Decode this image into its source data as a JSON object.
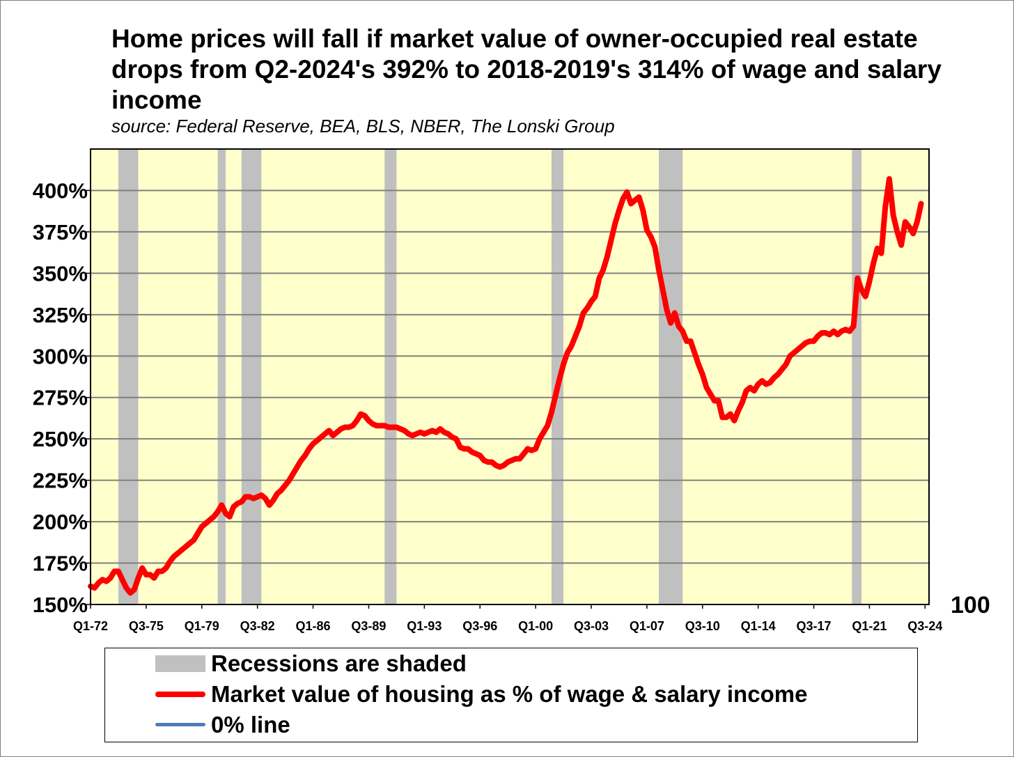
{
  "chart_data": {
    "type": "line",
    "title": "Home prices will fall if market value of owner-occupied real estate drops from Q2-2024's 392% to 2018-2019's 314% of wage and salary income",
    "subtitle": "source: Federal Reserve, BEA, BLS, NBER, The Lonski Group",
    "xlabel": "",
    "ylabel": "",
    "x_range": [
      1972.0,
      2024.75
    ],
    "ylim": [
      150,
      425
    ],
    "y_ticks": [
      150,
      175,
      200,
      225,
      250,
      275,
      300,
      325,
      350,
      375,
      400
    ],
    "y_tick_labels": [
      "150%",
      "175%",
      "200%",
      "225%",
      "250%",
      "275%",
      "300%",
      "325%",
      "350%",
      "375%",
      "400%"
    ],
    "right_axis_label": "100",
    "x_tick_labels": [
      {
        "label": "Q1-72",
        "x": 1972.0
      },
      {
        "label": "Q3-75",
        "x": 1975.5
      },
      {
        "label": "Q1-79",
        "x": 1979.0
      },
      {
        "label": "Q3-82",
        "x": 1982.5
      },
      {
        "label": "Q1-86",
        "x": 1986.0
      },
      {
        "label": "Q3-89",
        "x": 1989.5
      },
      {
        "label": "Q1-93",
        "x": 1993.0
      },
      {
        "label": "Q3-96",
        "x": 1996.5
      },
      {
        "label": "Q1-00",
        "x": 2000.0
      },
      {
        "label": "Q3-03",
        "x": 2003.5
      },
      {
        "label": "Q1-07",
        "x": 2007.0
      },
      {
        "label": "Q3-10",
        "x": 2010.5
      },
      {
        "label": "Q1-14",
        "x": 2014.0
      },
      {
        "label": "Q3-17",
        "x": 2017.5
      },
      {
        "label": "Q1-21",
        "x": 2021.0
      },
      {
        "label": "Q3-24",
        "x": 2024.5
      }
    ],
    "grid": true,
    "plot_background": "#ffffcc",
    "recessions": [
      {
        "start": 1973.75,
        "end": 1975.0
      },
      {
        "start": 1980.0,
        "end": 1980.5
      },
      {
        "start": 1981.5,
        "end": 1982.75
      },
      {
        "start": 1990.5,
        "end": 1991.25
      },
      {
        "start": 2001.0,
        "end": 2001.75
      },
      {
        "start": 2007.75,
        "end": 2009.25
      },
      {
        "start": 2019.9,
        "end": 2020.5
      }
    ],
    "series": [
      {
        "name": "Market value of housing as % of wage & salary income",
        "color": "#ff0000",
        "points": [
          [
            1972.0,
            161
          ],
          [
            1972.25,
            160
          ],
          [
            1972.5,
            163
          ],
          [
            1972.75,
            165
          ],
          [
            1973.0,
            164
          ],
          [
            1973.25,
            166
          ],
          [
            1973.5,
            170
          ],
          [
            1973.75,
            170
          ],
          [
            1974.0,
            165
          ],
          [
            1974.25,
            160
          ],
          [
            1974.5,
            157
          ],
          [
            1974.75,
            159
          ],
          [
            1975.0,
            166
          ],
          [
            1975.25,
            172
          ],
          [
            1975.5,
            168
          ],
          [
            1975.75,
            168
          ],
          [
            1976.0,
            166
          ],
          [
            1976.25,
            170
          ],
          [
            1976.5,
            170
          ],
          [
            1976.75,
            172
          ],
          [
            1977.0,
            176
          ],
          [
            1977.25,
            179
          ],
          [
            1977.5,
            181
          ],
          [
            1977.75,
            183
          ],
          [
            1978.0,
            185
          ],
          [
            1978.25,
            187
          ],
          [
            1978.5,
            189
          ],
          [
            1978.75,
            193
          ],
          [
            1979.0,
            197
          ],
          [
            1979.25,
            199
          ],
          [
            1979.5,
            201
          ],
          [
            1979.75,
            203
          ],
          [
            1980.0,
            206
          ],
          [
            1980.25,
            210
          ],
          [
            1980.5,
            205
          ],
          [
            1980.75,
            203
          ],
          [
            1981.0,
            209
          ],
          [
            1981.25,
            211
          ],
          [
            1981.5,
            212
          ],
          [
            1981.75,
            215
          ],
          [
            1982.0,
            215
          ],
          [
            1982.25,
            214
          ],
          [
            1982.5,
            215
          ],
          [
            1982.75,
            216
          ],
          [
            1983.0,
            214
          ],
          [
            1983.25,
            210
          ],
          [
            1983.5,
            213
          ],
          [
            1983.75,
            217
          ],
          [
            1984.0,
            219
          ],
          [
            1984.25,
            222
          ],
          [
            1984.5,
            225
          ],
          [
            1984.75,
            229
          ],
          [
            1985.0,
            233
          ],
          [
            1985.25,
            237
          ],
          [
            1985.5,
            240
          ],
          [
            1985.75,
            244
          ],
          [
            1986.0,
            247
          ],
          [
            1986.25,
            249
          ],
          [
            1986.5,
            251
          ],
          [
            1986.75,
            253
          ],
          [
            1987.0,
            255
          ],
          [
            1987.25,
            252
          ],
          [
            1987.5,
            254
          ],
          [
            1987.75,
            256
          ],
          [
            1988.0,
            257
          ],
          [
            1988.25,
            257
          ],
          [
            1988.5,
            258
          ],
          [
            1988.75,
            261
          ],
          [
            1989.0,
            265
          ],
          [
            1989.25,
            264
          ],
          [
            1989.5,
            261
          ],
          [
            1989.75,
            259
          ],
          [
            1990.0,
            258
          ],
          [
            1990.25,
            258
          ],
          [
            1990.5,
            258
          ],
          [
            1990.75,
            257
          ],
          [
            1991.0,
            257
          ],
          [
            1991.25,
            257
          ],
          [
            1991.5,
            256
          ],
          [
            1991.75,
            255
          ],
          [
            1992.0,
            253
          ],
          [
            1992.25,
            252
          ],
          [
            1992.5,
            253
          ],
          [
            1992.75,
            254
          ],
          [
            1993.0,
            253
          ],
          [
            1993.25,
            254
          ],
          [
            1993.5,
            255
          ],
          [
            1993.75,
            254
          ],
          [
            1994.0,
            256
          ],
          [
            1994.25,
            254
          ],
          [
            1994.5,
            253
          ],
          [
            1994.75,
            251
          ],
          [
            1995.0,
            250
          ],
          [
            1995.25,
            245
          ],
          [
            1995.5,
            244
          ],
          [
            1995.75,
            244
          ],
          [
            1996.0,
            242
          ],
          [
            1996.25,
            241
          ],
          [
            1996.5,
            240
          ],
          [
            1996.75,
            237
          ],
          [
            1997.0,
            236
          ],
          [
            1997.25,
            236
          ],
          [
            1997.5,
            234
          ],
          [
            1997.75,
            233
          ],
          [
            1998.0,
            234
          ],
          [
            1998.25,
            236
          ],
          [
            1998.5,
            237
          ],
          [
            1998.75,
            238
          ],
          [
            1999.0,
            238
          ],
          [
            1999.25,
            241
          ],
          [
            1999.5,
            244
          ],
          [
            1999.75,
            243
          ],
          [
            2000.0,
            244
          ],
          [
            2000.25,
            250
          ],
          [
            2000.5,
            254
          ],
          [
            2000.75,
            258
          ],
          [
            2001.0,
            266
          ],
          [
            2001.25,
            276
          ],
          [
            2001.5,
            286
          ],
          [
            2001.75,
            295
          ],
          [
            2002.0,
            302
          ],
          [
            2002.25,
            306
          ],
          [
            2002.5,
            312
          ],
          [
            2002.75,
            318
          ],
          [
            2003.0,
            326
          ],
          [
            2003.25,
            329
          ],
          [
            2003.5,
            333
          ],
          [
            2003.75,
            336
          ],
          [
            2004.0,
            347
          ],
          [
            2004.25,
            352
          ],
          [
            2004.5,
            360
          ],
          [
            2004.75,
            370
          ],
          [
            2005.0,
            380
          ],
          [
            2005.25,
            388
          ],
          [
            2005.5,
            395
          ],
          [
            2005.75,
            399
          ],
          [
            2006.0,
            392
          ],
          [
            2006.25,
            394
          ],
          [
            2006.5,
            396
          ],
          [
            2006.75,
            388
          ],
          [
            2007.0,
            376
          ],
          [
            2007.25,
            372
          ],
          [
            2007.5,
            366
          ],
          [
            2007.75,
            352
          ],
          [
            2008.0,
            340
          ],
          [
            2008.25,
            328
          ],
          [
            2008.5,
            320
          ],
          [
            2008.75,
            326
          ],
          [
            2009.0,
            318
          ],
          [
            2009.25,
            315
          ],
          [
            2009.5,
            309
          ],
          [
            2009.75,
            309
          ],
          [
            2010.0,
            302
          ],
          [
            2010.25,
            295
          ],
          [
            2010.5,
            289
          ],
          [
            2010.75,
            281
          ],
          [
            2011.0,
            277
          ],
          [
            2011.25,
            273
          ],
          [
            2011.5,
            273
          ],
          [
            2011.75,
            263
          ],
          [
            2012.0,
            263
          ],
          [
            2012.25,
            265
          ],
          [
            2012.5,
            261
          ],
          [
            2012.75,
            267
          ],
          [
            2013.0,
            272
          ],
          [
            2013.25,
            279
          ],
          [
            2013.5,
            281
          ],
          [
            2013.75,
            279
          ],
          [
            2014.0,
            283
          ],
          [
            2014.25,
            285
          ],
          [
            2014.5,
            283
          ],
          [
            2014.75,
            284
          ],
          [
            2015.0,
            287
          ],
          [
            2015.25,
            289
          ],
          [
            2015.5,
            292
          ],
          [
            2015.75,
            295
          ],
          [
            2016.0,
            300
          ],
          [
            2016.25,
            302
          ],
          [
            2016.5,
            304
          ],
          [
            2016.75,
            306
          ],
          [
            2017.0,
            308
          ],
          [
            2017.25,
            309
          ],
          [
            2017.5,
            309
          ],
          [
            2017.75,
            312
          ],
          [
            2018.0,
            314
          ],
          [
            2018.25,
            314
          ],
          [
            2018.5,
            313
          ],
          [
            2018.75,
            315
          ],
          [
            2019.0,
            313
          ],
          [
            2019.25,
            315
          ],
          [
            2019.5,
            316
          ],
          [
            2019.75,
            315
          ],
          [
            2020.0,
            318
          ],
          [
            2020.25,
            347
          ],
          [
            2020.5,
            340
          ],
          [
            2020.75,
            336
          ],
          [
            2021.0,
            345
          ],
          [
            2021.25,
            356
          ],
          [
            2021.5,
            365
          ],
          [
            2021.75,
            362
          ],
          [
            2022.0,
            390
          ],
          [
            2022.25,
            407
          ],
          [
            2022.5,
            385
          ],
          [
            2022.75,
            375
          ],
          [
            2023.0,
            367
          ],
          [
            2023.25,
            381
          ],
          [
            2023.5,
            378
          ],
          [
            2023.75,
            374
          ],
          [
            2024.0,
            381
          ],
          [
            2024.25,
            392
          ]
        ]
      },
      {
        "name": "0% line",
        "color": "#4a7ebb",
        "points": []
      }
    ],
    "legend": {
      "position": "bottom",
      "items": [
        {
          "label": "Recessions are shaded",
          "kind": "box",
          "color": "#c0c0c0"
        },
        {
          "label": "Market value of housing as % of wage & salary income",
          "kind": "line",
          "color": "#ff0000"
        },
        {
          "label": "0% line",
          "kind": "line",
          "color": "#4a7ebb"
        }
      ]
    }
  }
}
